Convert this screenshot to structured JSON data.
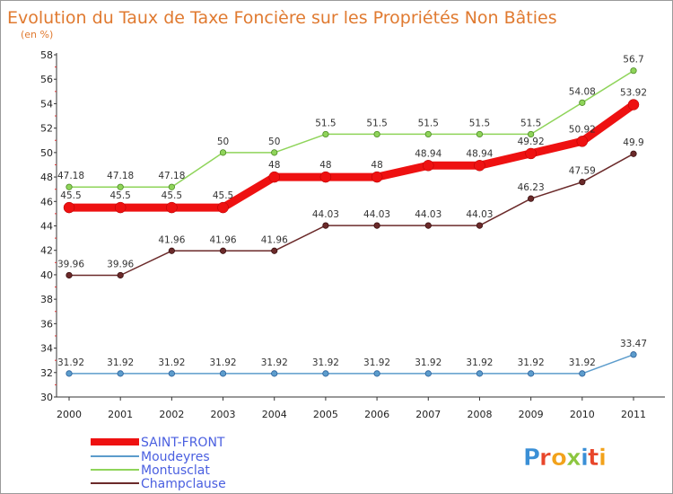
{
  "chart_data": {
    "type": "line",
    "title": "Evolution du Taux de Taxe Foncière sur les Propriétés Non Bâties",
    "subtitle": "(en %)",
    "xlabel": "",
    "ylabel": "",
    "ylim": [
      30,
      58
    ],
    "yticks": [
      30,
      32,
      34,
      36,
      38,
      40,
      42,
      44,
      46,
      48,
      50,
      52,
      54,
      56,
      58
    ],
    "grid": false,
    "legend_position": "bottom-left",
    "categories": [
      "2000",
      "2001",
      "2002",
      "2003",
      "2004",
      "2005",
      "2006",
      "2007",
      "2008",
      "2009",
      "2010",
      "2011"
    ],
    "series": [
      {
        "name": "SAINT-FRONT",
        "color": "#ee1111",
        "values": [
          45.5,
          45.5,
          45.5,
          45.5,
          48,
          48,
          48,
          48.94,
          48.94,
          49.92,
          50.92,
          53.92
        ],
        "labels": [
          "45.5",
          "45.5",
          "45.5",
          "45.5",
          "48",
          "48",
          "48",
          "48.94",
          "48.94",
          "49.92",
          "50.92",
          "53.92"
        ]
      },
      {
        "name": "Moudeyres",
        "color": "#5c9ccc",
        "values": [
          31.92,
          31.92,
          31.92,
          31.92,
          31.92,
          31.92,
          31.92,
          31.92,
          31.92,
          31.92,
          31.92,
          33.47
        ],
        "labels": [
          "31.92",
          "31.92",
          "31.92",
          "31.92",
          "31.92",
          "31.92",
          "31.92",
          "31.92",
          "31.92",
          "31.92",
          "31.92",
          "33.47"
        ]
      },
      {
        "name": "Montusclat",
        "color": "#8fd45a",
        "values": [
          47.18,
          47.18,
          47.18,
          50,
          50,
          51.5,
          51.5,
          51.5,
          51.5,
          51.5,
          54.08,
          56.7
        ],
        "labels": [
          "47.18",
          "47.18",
          "47.18",
          "50",
          "50",
          "51.5",
          "51.5",
          "51.5",
          "51.5",
          "51.5",
          "54.08",
          "56.7"
        ]
      },
      {
        "name": "Champclause",
        "color": "#6b2a2a",
        "values": [
          39.96,
          39.96,
          41.96,
          41.96,
          41.96,
          44.03,
          44.03,
          44.03,
          44.03,
          46.23,
          47.59,
          49.9
        ],
        "labels": [
          "39.96",
          "39.96",
          "41.96",
          "41.96",
          "41.96",
          "44.03",
          "44.03",
          "44.03",
          "44.03",
          "46.23",
          "47.59",
          "49.9"
        ]
      }
    ]
  },
  "legend": {
    "items": [
      "SAINT-FRONT",
      "Moudeyres",
      "Montusclat",
      "Champclause"
    ]
  },
  "logo": {
    "text": "Proxiti",
    "colors": [
      "#3a8fd6",
      "#e8462b",
      "#f2a21b",
      "#8cc63f",
      "#3a8fd6",
      "#e8462b",
      "#f2a21b"
    ]
  }
}
